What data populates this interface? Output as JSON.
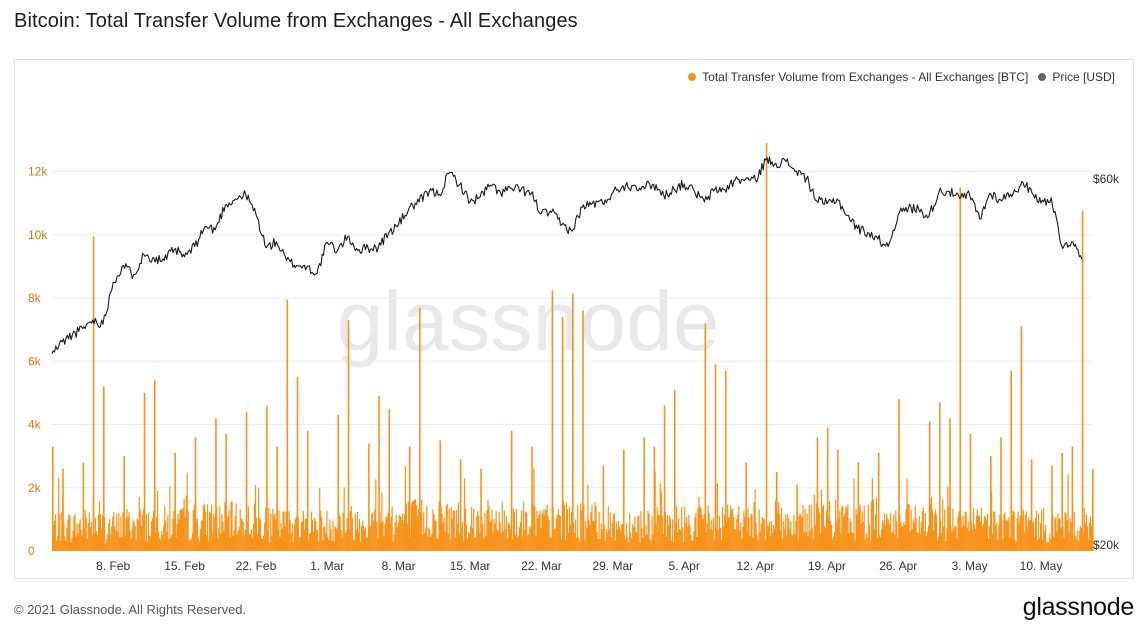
{
  "header": {
    "title": "Bitcoin: Total Transfer Volume from Exchanges - All Exchanges"
  },
  "footer": {
    "copyright": "© 2021 Glassnode. All Rights Reserved.",
    "logo_text": "glassnode"
  },
  "watermark": "glassnode",
  "chart_data": {
    "type": "bar",
    "title": "Bitcoin: Total Transfer Volume from Exchanges - All Exchanges",
    "legend_position": "top-right",
    "grid": true,
    "colors": {
      "volume": "#f7931a",
      "price": "#555555",
      "axis_left": "#d37a14",
      "axis_right": "#333333"
    },
    "x": {
      "tick_labels": [
        "8. Feb",
        "15. Feb",
        "22. Feb",
        "1. Mar",
        "8. Mar",
        "15. Mar",
        "22. Mar",
        "29. Mar",
        "5. Apr",
        "12. Apr",
        "19. Apr",
        "26. Apr",
        "3. May",
        "10. May"
      ],
      "range": [
        "2021-02-02",
        "2021-05-15"
      ]
    },
    "y_left": {
      "label": "",
      "tick_labels": [
        "0",
        "2k",
        "4k",
        "6k",
        "8k",
        "10k",
        "12k"
      ],
      "range": [
        0,
        13000
      ]
    },
    "y_right": {
      "label": "",
      "scale": "log",
      "tick_labels": [
        "$20k",
        "$60k"
      ],
      "range": [
        20000,
        60000
      ]
    },
    "series": [
      {
        "name": "Total Transfer Volume from Exchanges - All Exchanges [BTC]",
        "kind": "bar",
        "baseline_2k_envelope": [
          1000,
          1100,
          1200,
          1050,
          1150,
          1300,
          1250,
          1200,
          1100,
          1150,
          1200,
          1250,
          1150,
          1100,
          1050
        ],
        "spikes": [
          {
            "date": "2021-02-02",
            "value": 3300
          },
          {
            "date": "2021-02-03",
            "value": 2600
          },
          {
            "date": "2021-02-05",
            "value": 2800
          },
          {
            "date": "2021-02-06",
            "value": 9950
          },
          {
            "date": "2021-02-07",
            "value": 5200
          },
          {
            "date": "2021-02-09",
            "value": 3000
          },
          {
            "date": "2021-02-11",
            "value": 5000
          },
          {
            "date": "2021-02-12",
            "value": 5400
          },
          {
            "date": "2021-02-14",
            "value": 3100
          },
          {
            "date": "2021-02-16",
            "value": 3600
          },
          {
            "date": "2021-02-18",
            "value": 4200
          },
          {
            "date": "2021-02-19",
            "value": 3700
          },
          {
            "date": "2021-02-21",
            "value": 4400
          },
          {
            "date": "2021-02-23",
            "value": 4600
          },
          {
            "date": "2021-02-24",
            "value": 3300
          },
          {
            "date": "2021-02-25",
            "value": 7950
          },
          {
            "date": "2021-02-26",
            "value": 5500
          },
          {
            "date": "2021-02-27",
            "value": 3800
          },
          {
            "date": "2021-03-02",
            "value": 4300
          },
          {
            "date": "2021-03-03",
            "value": 7300
          },
          {
            "date": "2021-03-05",
            "value": 3400
          },
          {
            "date": "2021-03-06",
            "value": 4900
          },
          {
            "date": "2021-03-07",
            "value": 4500
          },
          {
            "date": "2021-03-09",
            "value": 3300
          },
          {
            "date": "2021-03-10",
            "value": 7700
          },
          {
            "date": "2021-03-12",
            "value": 3500
          },
          {
            "date": "2021-03-14",
            "value": 2900
          },
          {
            "date": "2021-03-16",
            "value": 2600
          },
          {
            "date": "2021-03-19",
            "value": 3800
          },
          {
            "date": "2021-03-21",
            "value": 3300
          },
          {
            "date": "2021-03-23",
            "value": 8250
          },
          {
            "date": "2021-03-24",
            "value": 7400
          },
          {
            "date": "2021-03-25",
            "value": 8150
          },
          {
            "date": "2021-03-26",
            "value": 7600
          },
          {
            "date": "2021-03-28",
            "value": 2700
          },
          {
            "date": "2021-03-30",
            "value": 3200
          },
          {
            "date": "2021-04-01",
            "value": 3600
          },
          {
            "date": "2021-04-02",
            "value": 3300
          },
          {
            "date": "2021-04-03",
            "value": 4600
          },
          {
            "date": "2021-04-04",
            "value": 5100
          },
          {
            "date": "2021-04-07",
            "value": 7200
          },
          {
            "date": "2021-04-08",
            "value": 5900
          },
          {
            "date": "2021-04-09",
            "value": 5700
          },
          {
            "date": "2021-04-11",
            "value": 2800
          },
          {
            "date": "2021-04-13",
            "value": 12900
          },
          {
            "date": "2021-04-14",
            "value": 2500
          },
          {
            "date": "2021-04-16",
            "value": 2100
          },
          {
            "date": "2021-04-18",
            "value": 3600
          },
          {
            "date": "2021-04-19",
            "value": 3900
          },
          {
            "date": "2021-04-20",
            "value": 3200
          },
          {
            "date": "2021-04-22",
            "value": 2800
          },
          {
            "date": "2021-04-24",
            "value": 3100
          },
          {
            "date": "2021-04-26",
            "value": 4800
          },
          {
            "date": "2021-04-29",
            "value": 4100
          },
          {
            "date": "2021-04-30",
            "value": 4700
          },
          {
            "date": "2021-05-01",
            "value": 4200
          },
          {
            "date": "2021-05-02",
            "value": 11500
          },
          {
            "date": "2021-05-03",
            "value": 3700
          },
          {
            "date": "2021-05-05",
            "value": 3000
          },
          {
            "date": "2021-05-06",
            "value": 3600
          },
          {
            "date": "2021-05-07",
            "value": 5700
          },
          {
            "date": "2021-05-08",
            "value": 7100
          },
          {
            "date": "2021-05-09",
            "value": 2900
          },
          {
            "date": "2021-05-11",
            "value": 2700
          },
          {
            "date": "2021-05-12",
            "value": 3100
          },
          {
            "date": "2021-05-13",
            "value": 3300
          },
          {
            "date": "2021-05-14",
            "value": 10750
          },
          {
            "date": "2021-05-15",
            "value": 2600
          }
        ]
      },
      {
        "name": "Price [USD]",
        "kind": "line",
        "points": [
          [
            "2021-02-02",
            35500
          ],
          [
            "2021-02-03",
            36800
          ],
          [
            "2021-02-04",
            37600
          ],
          [
            "2021-02-05",
            38300
          ],
          [
            "2021-02-06",
            39300
          ],
          [
            "2021-02-07",
            38800
          ],
          [
            "2021-02-08",
            44000
          ],
          [
            "2021-02-09",
            46300
          ],
          [
            "2021-02-10",
            45000
          ],
          [
            "2021-02-11",
            47800
          ],
          [
            "2021-02-12",
            47300
          ],
          [
            "2021-02-13",
            47000
          ],
          [
            "2021-02-14",
            48600
          ],
          [
            "2021-02-15",
            47500
          ],
          [
            "2021-02-16",
            49000
          ],
          [
            "2021-02-17",
            52000
          ],
          [
            "2021-02-18",
            51500
          ],
          [
            "2021-02-19",
            55500
          ],
          [
            "2021-02-20",
            56500
          ],
          [
            "2021-02-21",
            57300
          ],
          [
            "2021-02-22",
            54000
          ],
          [
            "2021-02-23",
            48800
          ],
          [
            "2021-02-24",
            49700
          ],
          [
            "2021-02-25",
            47000
          ],
          [
            "2021-02-26",
            46300
          ],
          [
            "2021-02-27",
            46100
          ],
          [
            "2021-02-28",
            45200
          ],
          [
            "2021-03-01",
            49600
          ],
          [
            "2021-03-02",
            48400
          ],
          [
            "2021-03-03",
            50500
          ],
          [
            "2021-03-04",
            48400
          ],
          [
            "2021-03-05",
            48800
          ],
          [
            "2021-03-06",
            48900
          ],
          [
            "2021-03-07",
            51000
          ],
          [
            "2021-03-08",
            52400
          ],
          [
            "2021-03-09",
            54900
          ],
          [
            "2021-03-10",
            56000
          ],
          [
            "2021-03-11",
            57800
          ],
          [
            "2021-03-12",
            57300
          ],
          [
            "2021-03-13",
            61200
          ],
          [
            "2021-03-14",
            59000
          ],
          [
            "2021-03-15",
            56000
          ],
          [
            "2021-03-16",
            56900
          ],
          [
            "2021-03-17",
            58900
          ],
          [
            "2021-03-18",
            57600
          ],
          [
            "2021-03-19",
            58300
          ],
          [
            "2021-03-20",
            58100
          ],
          [
            "2021-03-21",
            57400
          ],
          [
            "2021-03-22",
            54100
          ],
          [
            "2021-03-23",
            54300
          ],
          [
            "2021-03-24",
            52300
          ],
          [
            "2021-03-25",
            51300
          ],
          [
            "2021-03-26",
            55100
          ],
          [
            "2021-03-27",
            55800
          ],
          [
            "2021-03-28",
            55800
          ],
          [
            "2021-03-29",
            57600
          ],
          [
            "2021-03-30",
            58800
          ],
          [
            "2021-03-31",
            58800
          ],
          [
            "2021-04-01",
            58700
          ],
          [
            "2021-04-02",
            59000
          ],
          [
            "2021-04-03",
            57100
          ],
          [
            "2021-04-04",
            58200
          ],
          [
            "2021-04-05",
            59100
          ],
          [
            "2021-04-06",
            57800
          ],
          [
            "2021-04-07",
            56000
          ],
          [
            "2021-04-08",
            58100
          ],
          [
            "2021-04-09",
            58100
          ],
          [
            "2021-04-10",
            59800
          ],
          [
            "2021-04-11",
            59900
          ],
          [
            "2021-04-12",
            59800
          ],
          [
            "2021-04-13",
            63500
          ],
          [
            "2021-04-14",
            62900
          ],
          [
            "2021-04-15",
            63200
          ],
          [
            "2021-04-16",
            61500
          ],
          [
            "2021-04-17",
            60100
          ],
          [
            "2021-04-18",
            56200
          ],
          [
            "2021-04-19",
            55700
          ],
          [
            "2021-04-20",
            56500
          ],
          [
            "2021-04-21",
            53800
          ],
          [
            "2021-04-22",
            51700
          ],
          [
            "2021-04-23",
            51100
          ],
          [
            "2021-04-24",
            50100
          ],
          [
            "2021-04-25",
            49000
          ],
          [
            "2021-04-26",
            54000
          ],
          [
            "2021-04-27",
            55000
          ],
          [
            "2021-04-28",
            54800
          ],
          [
            "2021-04-29",
            53600
          ],
          [
            "2021-04-30",
            57800
          ],
          [
            "2021-05-01",
            57800
          ],
          [
            "2021-05-02",
            56600
          ],
          [
            "2021-05-03",
            57200
          ],
          [
            "2021-05-04",
            53200
          ],
          [
            "2021-05-05",
            57500
          ],
          [
            "2021-05-06",
            56400
          ],
          [
            "2021-05-07",
            57300
          ],
          [
            "2021-05-08",
            58900
          ],
          [
            "2021-05-09",
            58300
          ],
          [
            "2021-05-10",
            55800
          ],
          [
            "2021-05-11",
            56700
          ],
          [
            "2021-05-12",
            49200
          ],
          [
            "2021-05-13",
            49700
          ],
          [
            "2021-05-14",
            47200
          ]
        ]
      }
    ]
  }
}
